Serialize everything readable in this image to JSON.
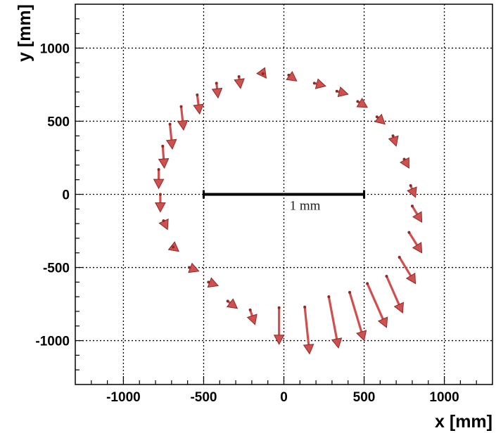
{
  "chart_data": {
    "type": "vector_field",
    "xlabel": "x [mm]",
    "ylabel": "y [mm]",
    "xlim": [
      -1300,
      1300
    ],
    "ylim": [
      -1300,
      1300
    ],
    "xticks": [
      -1000,
      -500,
      0,
      500,
      1000
    ],
    "yticks": [
      -1000,
      -500,
      0,
      500,
      1000
    ],
    "grid": true,
    "colors": {
      "arrow": "#d0504f",
      "arrowhead": "#8c2a28",
      "scale_bar": "#000000",
      "grid": "#000000"
    },
    "scale_bar": {
      "label": "1 mm",
      "x_start": -500,
      "x_end": 500,
      "y": 0
    },
    "arrows": [
      {
        "x": -770,
        "y": 0,
        "dx": 0,
        "dy": -120
      },
      {
        "x": -780,
        "y": 170,
        "dx": 0,
        "dy": -130
      },
      {
        "x": -755,
        "y": 330,
        "dx": 10,
        "dy": -150
      },
      {
        "x": -710,
        "y": 480,
        "dx": 15,
        "dy": -170
      },
      {
        "x": -640,
        "y": 600,
        "dx": 15,
        "dy": -160
      },
      {
        "x": -540,
        "y": 680,
        "dx": 15,
        "dy": -130
      },
      {
        "x": -420,
        "y": 760,
        "dx": 10,
        "dy": -100
      },
      {
        "x": -280,
        "y": 805,
        "dx": 10,
        "dy": -80
      },
      {
        "x": -130,
        "y": 825,
        "dx": 20,
        "dy": -30
      },
      {
        "x": 30,
        "y": 815,
        "dx": 50,
        "dy": -40
      },
      {
        "x": 190,
        "y": 760,
        "dx": 70,
        "dy": -20
      },
      {
        "x": 330,
        "y": 705,
        "dx": 70,
        "dy": -20
      },
      {
        "x": 460,
        "y": 635,
        "dx": 60,
        "dy": -40
      },
      {
        "x": 580,
        "y": 530,
        "dx": 50,
        "dy": -50
      },
      {
        "x": 680,
        "y": 400,
        "dx": 20,
        "dy": -70
      },
      {
        "x": 750,
        "y": 240,
        "dx": 30,
        "dy": -60
      },
      {
        "x": 790,
        "y": 60,
        "dx": 30,
        "dy": -80
      },
      {
        "x": 800,
        "y": -80,
        "dx": 60,
        "dy": -110
      },
      {
        "x": 780,
        "y": -260,
        "dx": 80,
        "dy": -140
      },
      {
        "x": 720,
        "y": -430,
        "dx": 100,
        "dy": -180
      },
      {
        "x": 640,
        "y": -560,
        "dx": 100,
        "dy": -250
      },
      {
        "x": 520,
        "y": -610,
        "dx": 120,
        "dy": -300
      },
      {
        "x": 410,
        "y": -670,
        "dx": 90,
        "dy": -330
      },
      {
        "x": 280,
        "y": -700,
        "dx": 60,
        "dy": -350
      },
      {
        "x": 130,
        "y": -770,
        "dx": 30,
        "dy": -320
      },
      {
        "x": -30,
        "y": -775,
        "dx": 0,
        "dy": -250
      },
      {
        "x": -210,
        "y": -790,
        "dx": 30,
        "dy": -100
      },
      {
        "x": -350,
        "y": -730,
        "dx": 60,
        "dy": -50
      },
      {
        "x": -470,
        "y": -600,
        "dx": 60,
        "dy": -25
      },
      {
        "x": -590,
        "y": -500,
        "dx": 60,
        "dy": -25
      },
      {
        "x": -690,
        "y": -360,
        "dx": 35,
        "dy": -30
      },
      {
        "x": -750,
        "y": -180,
        "dx": 25,
        "dy": -60
      }
    ]
  }
}
